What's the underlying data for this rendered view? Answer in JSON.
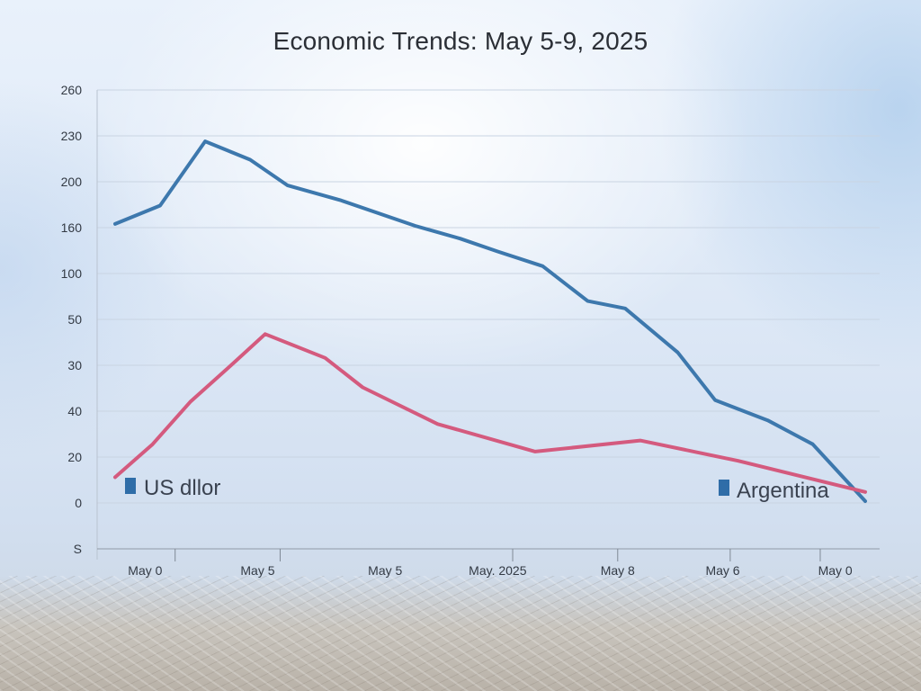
{
  "chart_data": {
    "type": "line",
    "title": "Economic Trends: May 5-9, 2025",
    "xlabel": "",
    "ylabel": "",
    "x_tick_labels": [
      "May 0",
      "May 5",
      "May 5",
      "May. 2025",
      "May 8",
      "May 6",
      "May 0"
    ],
    "y_tick_labels": [
      "S",
      "0",
      "20",
      "40",
      "30",
      "50",
      "100",
      "160",
      "200",
      "230",
      "260"
    ],
    "y_axis_unit_step": 25,
    "ylim": [
      0,
      250
    ],
    "grid": true,
    "legend": [
      {
        "label": "US dllor",
        "color": "#2f6da8",
        "placement": "bottom-left"
      },
      {
        "label": "Argentina",
        "color": "#2f6da8",
        "placement": "bottom-right"
      }
    ],
    "series": [
      {
        "color": "#3d78ad",
        "x": [
          0,
          0.06,
          0.12,
          0.18,
          0.23,
          0.3,
          0.4,
          0.46,
          0.51,
          0.57,
          0.63,
          0.68,
          0.75,
          0.8,
          0.87,
          0.93,
          1.0
        ],
        "values": [
          177,
          187,
          222,
          212,
          198,
          190,
          176,
          169,
          162,
          154,
          135,
          131,
          107,
          81,
          70,
          57,
          26
        ]
      },
      {
        "color": "#d45a7e",
        "x": [
          0,
          0.05,
          0.1,
          0.16,
          0.2,
          0.28,
          0.33,
          0.43,
          0.56,
          0.7,
          0.83,
          1.0
        ],
        "values": [
          39,
          57,
          80,
          102,
          117,
          104,
          88,
          68,
          53,
          59,
          48,
          31
        ]
      }
    ]
  }
}
